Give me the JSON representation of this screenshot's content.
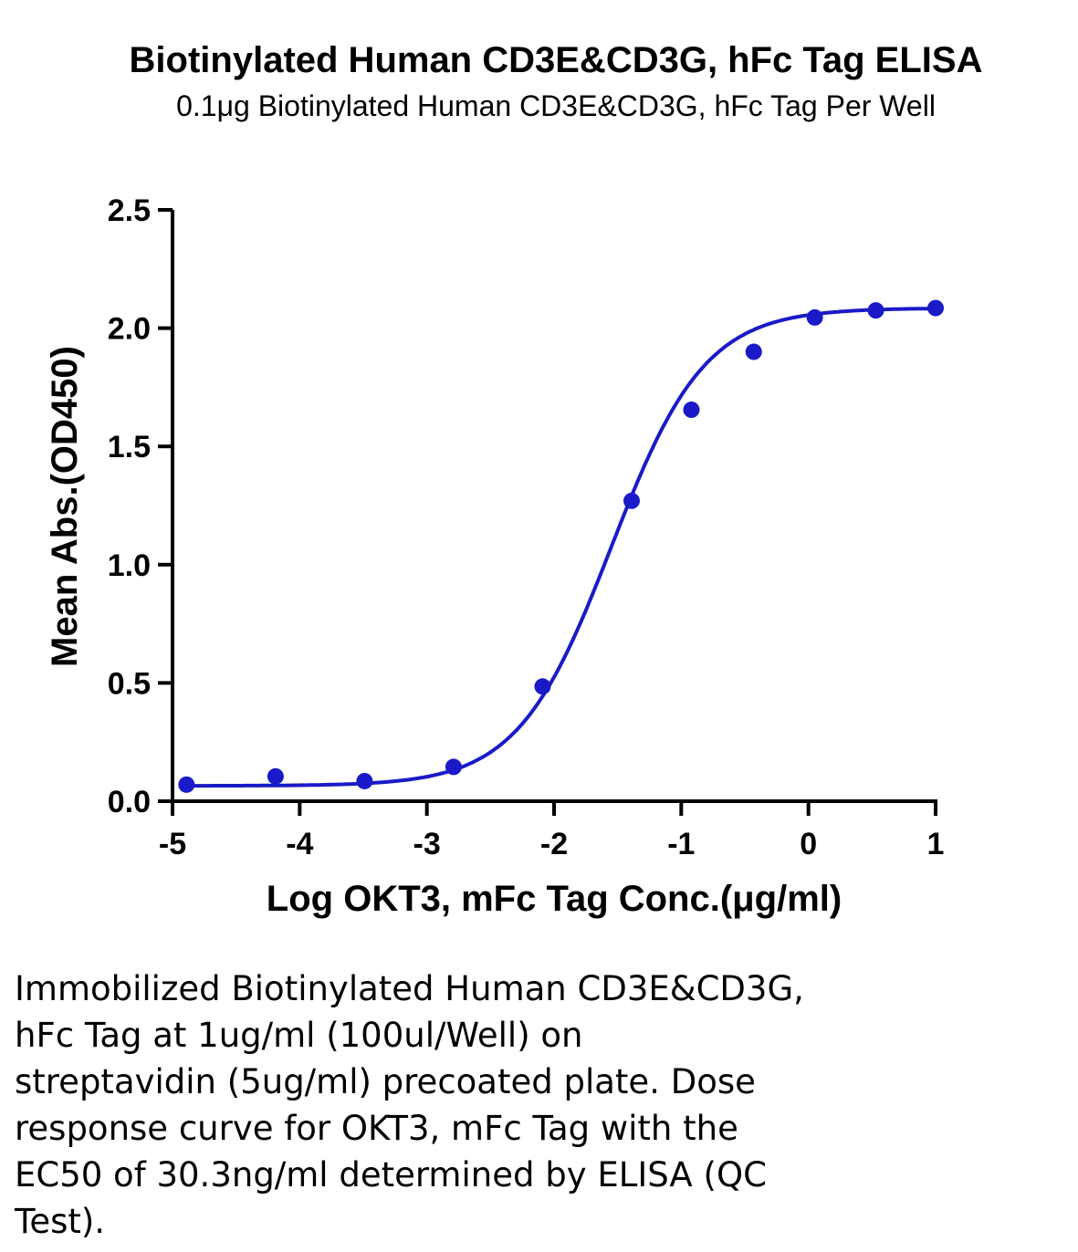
{
  "chart_data": {
    "type": "scatter",
    "title": "Biotinylated Human CD3E&CD3G, hFc Tag ELISA",
    "subtitle": "0.1μg Biotinylated Human CD3E&CD3G, hFc Tag Per Well",
    "xlabel": "Log OKT3, mFc Tag Conc.(μg/ml)",
    "ylabel": "Mean Abs.(OD450)",
    "xlim": [
      -5,
      1
    ],
    "ylim": [
      0,
      2.5
    ],
    "x_ticks": [
      "-5",
      "-4",
      "-3",
      "-2",
      "-1",
      "0",
      "1"
    ],
    "y_ticks": [
      "0.0",
      "0.5",
      "1.0",
      "1.5",
      "2.0",
      "2.5"
    ],
    "series": [
      {
        "x": [
          -4.89,
          -4.19,
          -3.49,
          -2.79,
          -2.09,
          -1.39,
          -0.92,
          -0.43,
          0.05,
          0.53,
          1.0
        ],
        "y": [
          0.07,
          0.105,
          0.085,
          0.145,
          0.485,
          1.27,
          1.655,
          1.9,
          2.045,
          2.075,
          2.085
        ],
        "color": "#1a1ac8",
        "fit": "four-parameter logistic"
      }
    ],
    "grid": false,
    "legend": "none"
  },
  "caption_lines": [
    "Immobilized Biotinylated Human CD3E&CD3G,",
    "hFc Tag at 1ug/ml (100ul/Well) on",
    "streptavidin (5ug/ml) precoated plate. Dose",
    "response curve for OKT3, mFc Tag with the",
    "EC50 of 30.3ng/ml determined by ELISA (QC",
    "Test)."
  ]
}
